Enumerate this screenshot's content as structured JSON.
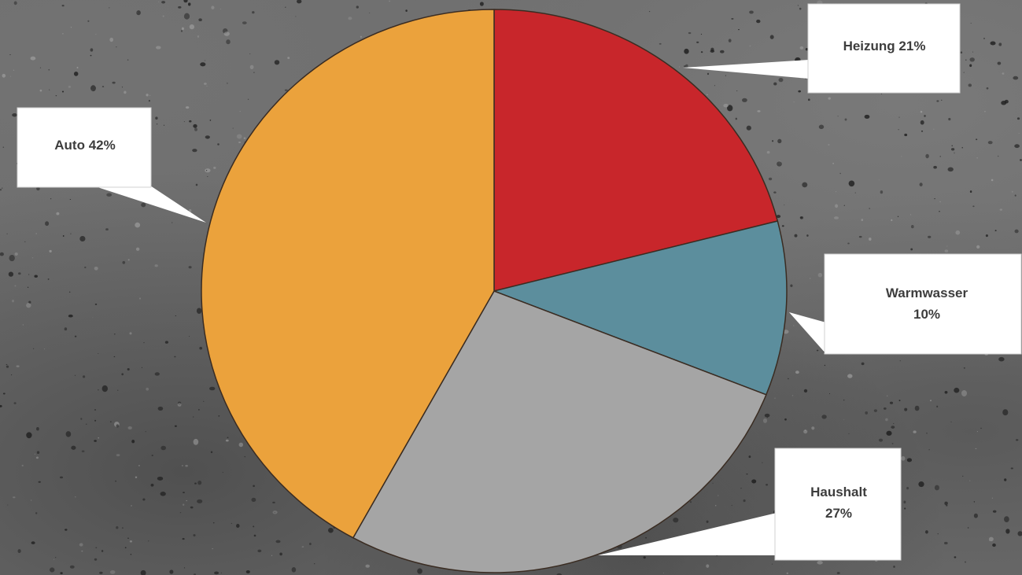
{
  "chart_data": {
    "type": "pie",
    "slices": [
      {
        "label": "Heizung",
        "value": 21,
        "percent_label": "21%",
        "color": "#c8262b"
      },
      {
        "label": "Warmwasser",
        "value": 10,
        "percent_label": "10%",
        "color": "#5c8e9d"
      },
      {
        "label": "Haushalt",
        "value": 27,
        "percent_label": "27%",
        "color": "#a5a5a5"
      },
      {
        "label": "Auto",
        "value": 42,
        "percent_label": "42%",
        "color": "#eba23c"
      }
    ]
  }
}
